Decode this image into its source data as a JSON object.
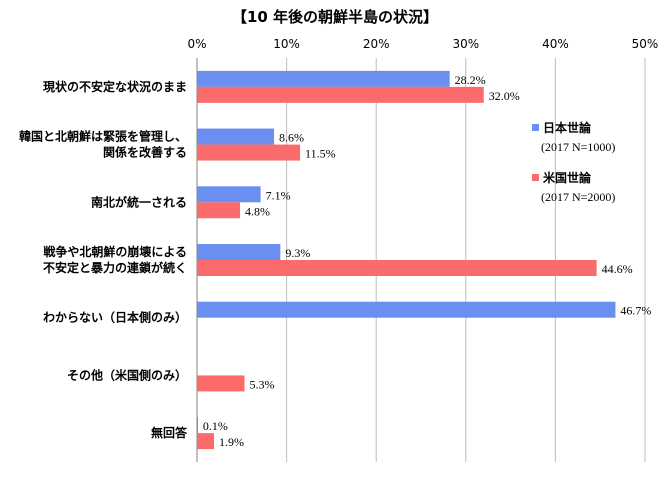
{
  "chart_data": {
    "type": "bar",
    "orientation": "horizontal",
    "title": "【10 年後の朝鮮半島の状況】",
    "xlim": [
      0,
      50
    ],
    "ticks": [
      "0%",
      "10%",
      "20%",
      "30%",
      "40%",
      "50%"
    ],
    "categories": [
      [
        "現状の不安定な状況のまま"
      ],
      [
        "韓国と北朝鮮は緊張を管理し、",
        "関係を改善する"
      ],
      [
        "南北が統一される"
      ],
      [
        "戦争や北朝鮮の崩壊による",
        "不安定と暴力の連鎖が続く"
      ],
      [
        "わからない（日本側のみ）"
      ],
      [
        "その他（米国側のみ）"
      ],
      [
        "無回答"
      ]
    ],
    "series": [
      {
        "name": "日本世論",
        "sub": "(2017 N=1000)",
        "color": "#6b8ff0",
        "values": [
          28.2,
          8.6,
          7.1,
          9.3,
          46.7,
          null,
          0.1
        ],
        "labels": [
          "28.2%",
          "8.6%",
          "7.1%",
          "9.3%",
          "46.7%",
          "",
          "0.1%"
        ]
      },
      {
        "name": "米国世論",
        "sub": "(2017 N=2000)",
        "color": "#fb6b6b",
        "values": [
          32.0,
          11.5,
          4.8,
          44.6,
          null,
          5.3,
          1.9
        ],
        "labels": [
          "32.0%",
          "11.5%",
          "4.8%",
          "44.6%",
          "",
          "5.3%",
          "1.9%"
        ]
      }
    ],
    "legend": "right"
  }
}
